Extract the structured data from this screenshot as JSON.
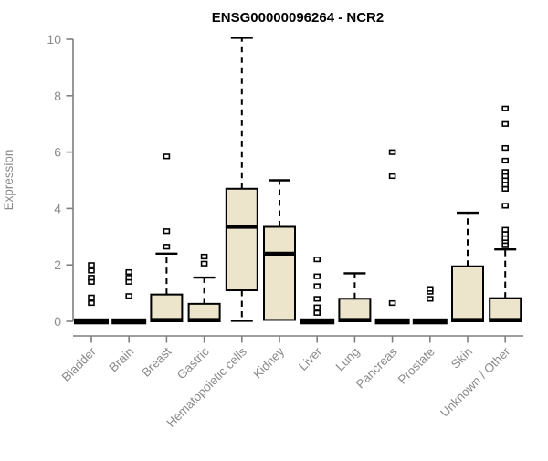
{
  "chart_data": {
    "type": "boxplot",
    "title": "ENSG00000096264 - NCR2",
    "ylabel": "Expression",
    "xlabel": "",
    "ylim": [
      0,
      10
    ],
    "yticks": [
      0,
      2,
      4,
      6,
      8,
      10
    ],
    "grid": false,
    "legend": "none",
    "colors": {
      "box_fill": "#ece5cb",
      "box_border": "#000000",
      "median": "#000000",
      "whisker": "#000000",
      "outlier": "#000000",
      "axis": "#7f7f7f",
      "tick_label": "#8b8b8b",
      "title": "#000000"
    },
    "categories": [
      "Bladder",
      "Brain",
      "Breast",
      "Gastric",
      "Hematopoietic cells",
      "Kidney",
      "Liver",
      "Lung",
      "Pancreas",
      "Prostate",
      "Skin",
      "Unknown / Other"
    ],
    "series": [
      {
        "category": "Bladder",
        "q1": 0,
        "median": 0,
        "q3": 0,
        "whisker_low": 0,
        "whisker_high": 0,
        "outliers": [
          0.65,
          0.85,
          1.4,
          1.55,
          1.8,
          2.0
        ]
      },
      {
        "category": "Brain",
        "q1": 0,
        "median": 0,
        "q3": 0,
        "whisker_low": 0,
        "whisker_high": 0,
        "outliers": [
          0.9,
          1.4,
          1.55,
          1.75
        ]
      },
      {
        "category": "Breast",
        "q1": 0,
        "median": 0.05,
        "q3": 0.95,
        "whisker_low": 0,
        "whisker_high": 2.4,
        "outliers": [
          2.65,
          3.2,
          5.85
        ]
      },
      {
        "category": "Gastric",
        "q1": 0,
        "median": 0.05,
        "q3": 0.62,
        "whisker_low": 0,
        "whisker_high": 1.55,
        "outliers": [
          2.05,
          2.3
        ]
      },
      {
        "category": "Hematopoietic cells",
        "q1": 1.1,
        "median": 3.35,
        "q3": 4.7,
        "whisker_low": 0.02,
        "whisker_high": 10.05,
        "outliers": []
      },
      {
        "category": "Kidney",
        "q1": 0.05,
        "median": 2.4,
        "q3": 3.35,
        "whisker_low": 0.05,
        "whisker_high": 5.0,
        "outliers": []
      },
      {
        "category": "Liver",
        "q1": 0,
        "median": 0,
        "q3": 0,
        "whisker_low": 0,
        "whisker_high": 0,
        "outliers": [
          0.3,
          0.5,
          0.8,
          1.25,
          1.6,
          2.2
        ]
      },
      {
        "category": "Lung",
        "q1": 0,
        "median": 0.05,
        "q3": 0.8,
        "whisker_low": 0,
        "whisker_high": 1.7,
        "outliers": []
      },
      {
        "category": "Pancreas",
        "q1": 0,
        "median": 0,
        "q3": 0,
        "whisker_low": 0,
        "whisker_high": 0,
        "outliers": [
          0.65,
          5.15,
          6.0
        ]
      },
      {
        "category": "Prostate",
        "q1": 0,
        "median": 0,
        "q3": 0,
        "whisker_low": 0,
        "whisker_high": 0,
        "outliers": [
          0.8,
          1.05,
          1.15
        ]
      },
      {
        "category": "Skin",
        "q1": 0,
        "median": 0.05,
        "q3": 1.95,
        "whisker_low": 0,
        "whisker_high": 3.85,
        "outliers": []
      },
      {
        "category": "Unknown / Other",
        "q1": 0,
        "median": 0.05,
        "q3": 0.82,
        "whisker_low": 0,
        "whisker_high": 2.55,
        "outliers": [
          2.7,
          2.85,
          2.95,
          3.1,
          3.25,
          4.1,
          4.7,
          4.85,
          5.0,
          5.15,
          5.3,
          5.7,
          6.15,
          7.0,
          7.55
        ]
      }
    ]
  }
}
